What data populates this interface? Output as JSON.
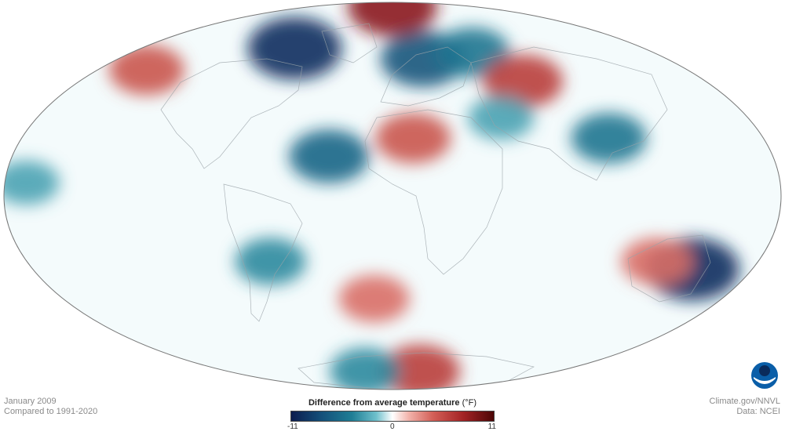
{
  "footer": {
    "date": "January 2009",
    "baseline": "Compared to 1991-2020",
    "credit": "Climate.gov/NNVL",
    "source": "Data: NCEI"
  },
  "legend": {
    "title": "Difference from average temperature",
    "unit": "(°F)",
    "min": "-11",
    "zero": "0",
    "max": "11",
    "colors": {
      "cold_extreme": "#0c1c4e",
      "cold": "#1f7e95",
      "neutral": "#ffffff",
      "warm": "#d35f57",
      "warm_extreme": "#4c0606"
    }
  },
  "map": {
    "projection": "Mollweide",
    "anomaly_blobs": [
      {
        "lon": 10,
        "lat": 22,
        "value": 6
      },
      {
        "lon": -30,
        "lat": 15,
        "value": -7
      },
      {
        "lon": -70,
        "lat": 60,
        "value": -10
      },
      {
        "lon": 20,
        "lat": 55,
        "value": -8
      },
      {
        "lon": 55,
        "lat": 58,
        "value": -6
      },
      {
        "lon": 75,
        "lat": 45,
        "value": 7
      },
      {
        "lon": 105,
        "lat": 22,
        "value": -6
      },
      {
        "lon": 55,
        "lat": 30,
        "value": -4
      },
      {
        "lon": 150,
        "lat": -28,
        "value": -10
      },
      {
        "lon": 130,
        "lat": -25,
        "value": 5
      },
      {
        "lon": -150,
        "lat": 50,
        "value": 6
      },
      {
        "lon": -10,
        "lat": -40,
        "value": 5
      },
      {
        "lon": -60,
        "lat": -25,
        "value": -5
      },
      {
        "lon": -170,
        "lat": 5,
        "value": -4
      },
      {
        "lon": 0,
        "lat": 85,
        "value": 9
      },
      {
        "lon": 30,
        "lat": -75,
        "value": 7
      },
      {
        "lon": -30,
        "lat": -75,
        "value": -5
      }
    ]
  },
  "logo": {
    "name": "noaa-logo",
    "text": "NOAA"
  }
}
